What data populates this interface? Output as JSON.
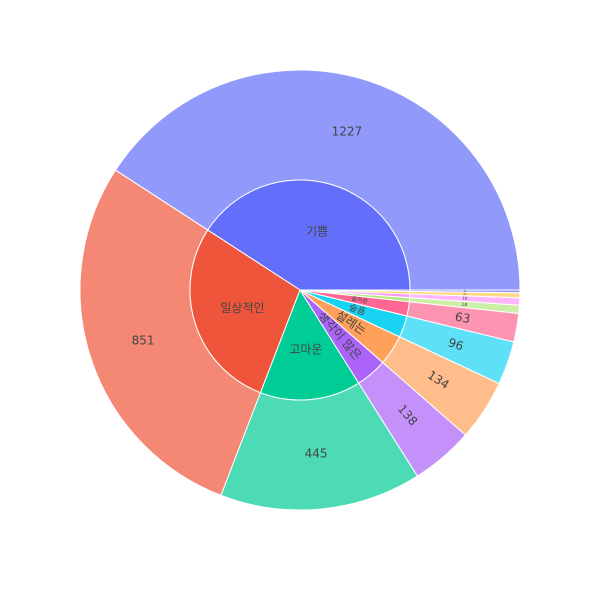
{
  "chart_data": {
    "type": "sunburst",
    "categories": [
      "기쁨",
      "일상적인",
      "고마운",
      "생각이 많은",
      "설레는",
      "슬픔",
      "즐거운",
      null,
      null,
      null,
      null
    ],
    "values": [
      1227,
      851,
      445,
      138,
      134,
      96,
      63,
      18,
      16,
      11,
      6
    ],
    "colors": [
      "#636efa",
      "#EF553B",
      "#00cc96",
      "#ab63fa",
      "#FFA15A",
      "#19d3f3",
      "#FF6692",
      "#B6E880",
      "#FF97FF",
      "#FECB52",
      "#636efa"
    ]
  }
}
